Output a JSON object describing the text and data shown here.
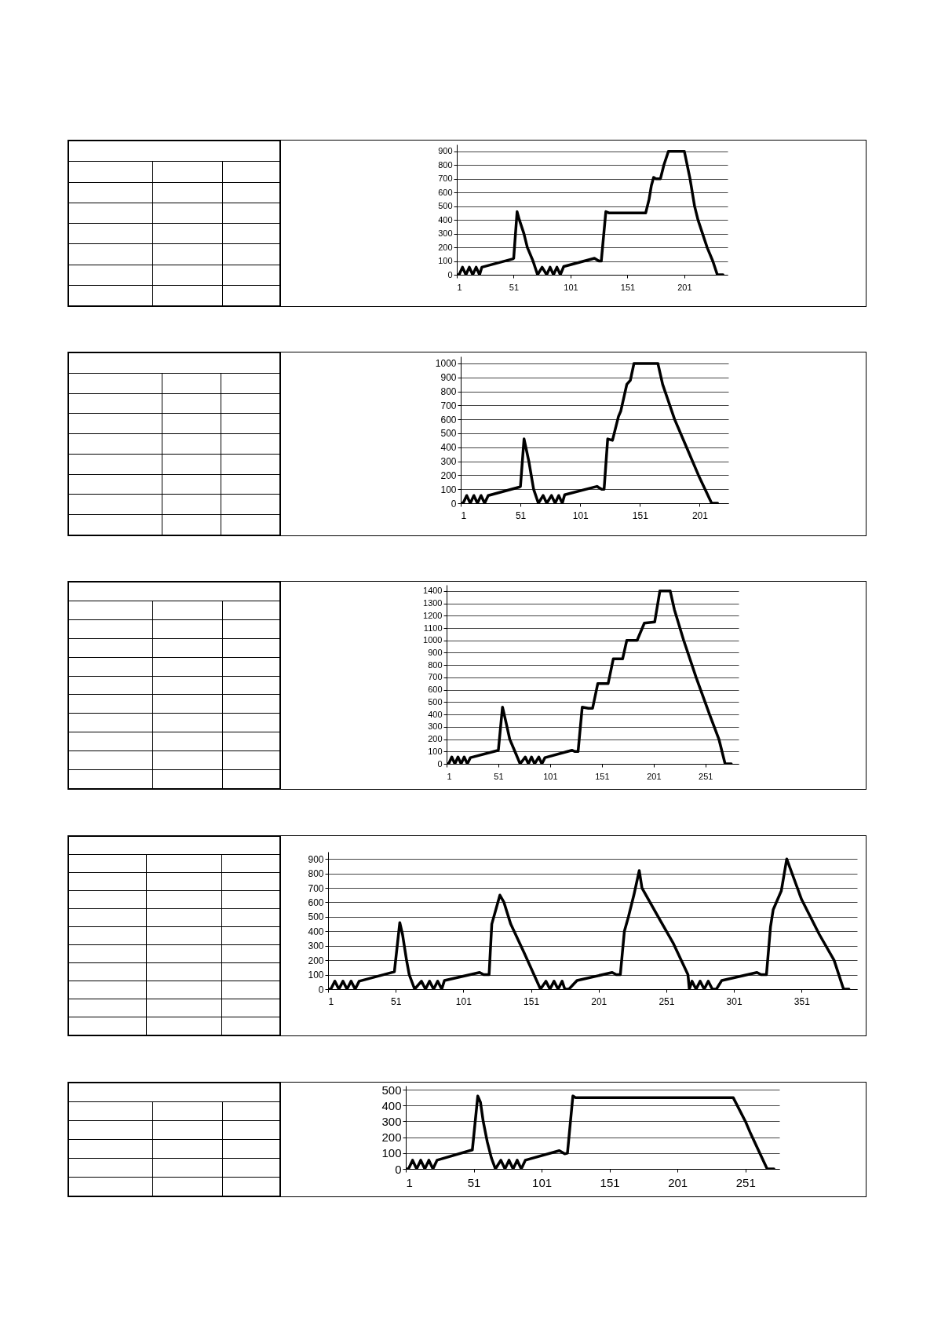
{
  "chart_data": [
    {
      "type": "line",
      "xlim": [
        1,
        239
      ],
      "xticks": [
        1,
        51,
        101,
        151,
        201
      ],
      "ylim": [
        0,
        950
      ],
      "yticks": [
        0,
        100,
        200,
        300,
        400,
        500,
        600,
        700,
        800,
        900
      ],
      "grid": "y",
      "marker": "none",
      "line_style": "solid",
      "series": [
        {
          "color": "#000000",
          "x": [
            1,
            3,
            6,
            9,
            12,
            15,
            18,
            21,
            23,
            50,
            51,
            54,
            56,
            60,
            63,
            68,
            72,
            76,
            80,
            83,
            86,
            89,
            92,
            95,
            122,
            126,
            128,
            132,
            135,
            167,
            170,
            172,
            174,
            176,
            180,
            183,
            187,
            201,
            206,
            210,
            213,
            217,
            221,
            226,
            230,
            235
          ],
          "values": [
            0,
            0,
            55,
            0,
            55,
            0,
            55,
            0,
            55,
            115,
            120,
            460,
            400,
            300,
            200,
            100,
            0,
            55,
            0,
            55,
            0,
            55,
            0,
            60,
            120,
            100,
            100,
            460,
            450,
            450,
            550,
            650,
            710,
            700,
            700,
            800,
            900,
            900,
            700,
            500,
            400,
            300,
            200,
            100,
            0,
            0
          ]
        }
      ]
    },
    {
      "type": "line",
      "xlim": [
        1,
        225
      ],
      "xticks": [
        1,
        51,
        101,
        151,
        201
      ],
      "ylim": [
        0,
        1050
      ],
      "yticks": [
        0,
        100,
        200,
        300,
        400,
        500,
        600,
        700,
        800,
        900,
        1000
      ],
      "grid": "y",
      "marker": "none",
      "line_style": "solid",
      "series": [
        {
          "color": "#000000",
          "x": [
            1,
            3,
            6,
            9,
            12,
            15,
            18,
            21,
            24,
            50,
            51,
            54,
            55,
            58,
            60,
            62,
            66,
            70,
            73,
            77,
            80,
            83,
            86,
            88,
            115,
            119,
            121,
            124,
            128,
            133,
            135,
            140,
            143,
            146,
            166,
            170,
            180,
            190,
            200,
            211,
            216
          ],
          "values": [
            0,
            0,
            55,
            0,
            55,
            0,
            55,
            0,
            55,
            115,
            120,
            460,
            420,
            300,
            200,
            100,
            0,
            55,
            0,
            55,
            0,
            55,
            0,
            60,
            120,
            100,
            100,
            460,
            450,
            620,
            660,
            850,
            880,
            1000,
            1000,
            850,
            600,
            400,
            200,
            0,
            0
          ]
        }
      ]
    },
    {
      "type": "line",
      "xlim": [
        1,
        283
      ],
      "xticks": [
        1,
        51,
        101,
        151,
        201,
        251
      ],
      "ylim": [
        0,
        1450
      ],
      "yticks": [
        0,
        100,
        200,
        300,
        400,
        500,
        600,
        700,
        800,
        900,
        1000,
        1100,
        1200,
        1300,
        1400
      ],
      "grid": "y",
      "marker": "none",
      "line_style": "solid",
      "series": [
        {
          "color": "#000000",
          "x": [
            1,
            3,
            6,
            9,
            12,
            15,
            18,
            21,
            24,
            51,
            55,
            58,
            62,
            67,
            72,
            77,
            80,
            83,
            86,
            90,
            93,
            96,
            122,
            125,
            128,
            132,
            138,
            142,
            147,
            157,
            162,
            171,
            175,
            185,
            192,
            202,
            207,
            217,
            221,
            230,
            242,
            255,
            264,
            270,
            276
          ],
          "values": [
            0,
            0,
            55,
            0,
            55,
            0,
            55,
            0,
            50,
            110,
            460,
            350,
            200,
            100,
            0,
            55,
            0,
            55,
            0,
            55,
            0,
            50,
            110,
            100,
            100,
            460,
            450,
            450,
            650,
            650,
            850,
            850,
            1000,
            1000,
            1140,
            1150,
            1400,
            1400,
            1250,
            1000,
            700,
            400,
            200,
            0,
            0
          ]
        }
      ]
    },
    {
      "type": "line",
      "xlim": [
        1,
        392
      ],
      "xticks": [
        1,
        51,
        101,
        151,
        201,
        251,
        301,
        351
      ],
      "ylim": [
        0,
        950
      ],
      "yticks": [
        0,
        100,
        200,
        300,
        400,
        500,
        600,
        700,
        800,
        900
      ],
      "grid": "y",
      "marker": "none",
      "line_style": "solid",
      "series": [
        {
          "color": "#000000",
          "x": [
            1,
            3,
            6,
            9,
            12,
            15,
            18,
            21,
            24,
            50,
            54,
            56,
            59,
            61,
            65,
            70,
            73,
            76,
            79,
            82,
            85,
            87,
            113,
            116,
            120,
            122,
            128,
            131,
            136,
            146,
            158,
            162,
            165,
            168,
            171,
            174,
            176,
            179,
            185,
            211,
            214,
            217,
            220,
            223,
            227,
            231,
            233,
            245,
            256,
            267,
            268,
            270,
            273,
            276,
            279,
            282,
            285,
            288,
            292,
            318,
            321,
            325,
            328,
            330,
            336,
            340,
            351,
            364,
            375,
            382,
            386
          ],
          "values": [
            0,
            0,
            55,
            0,
            55,
            0,
            55,
            0,
            55,
            120,
            460,
            380,
            200,
            100,
            0,
            55,
            0,
            55,
            0,
            55,
            0,
            60,
            115,
            100,
            100,
            450,
            650,
            600,
            450,
            250,
            0,
            55,
            0,
            55,
            0,
            55,
            0,
            0,
            60,
            115,
            100,
            100,
            400,
            500,
            650,
            820,
            700,
            500,
            320,
            100,
            0,
            55,
            0,
            55,
            0,
            55,
            0,
            0,
            60,
            115,
            100,
            100,
            430,
            550,
            680,
            900,
            620,
            380,
            200,
            0,
            0
          ]
        }
      ]
    },
    {
      "type": "line",
      "xlim": [
        1,
        276
      ],
      "xticks": [
        1,
        51,
        101,
        151,
        201,
        251
      ],
      "ylim": [
        0,
        525
      ],
      "yticks": [
        0,
        100,
        200,
        300,
        400,
        500
      ],
      "grid": "y",
      "marker": "none",
      "line_style": "solid",
      "series": [
        {
          "color": "#000000",
          "x": [
            1,
            3,
            6,
            9,
            12,
            15,
            18,
            21,
            24,
            50,
            54,
            56,
            58,
            61,
            64,
            67,
            71,
            74,
            77,
            80,
            83,
            86,
            89,
            114,
            118,
            120,
            124,
            126,
            242,
            251,
            255,
            267,
            272
          ],
          "values": [
            0,
            0,
            55,
            0,
            55,
            0,
            55,
            0,
            55,
            120,
            460,
            420,
            300,
            170,
            70,
            0,
            55,
            0,
            55,
            0,
            55,
            0,
            55,
            115,
            95,
            100,
            460,
            450,
            450,
            300,
            220,
            0,
            0
          ]
        }
      ]
    }
  ]
}
